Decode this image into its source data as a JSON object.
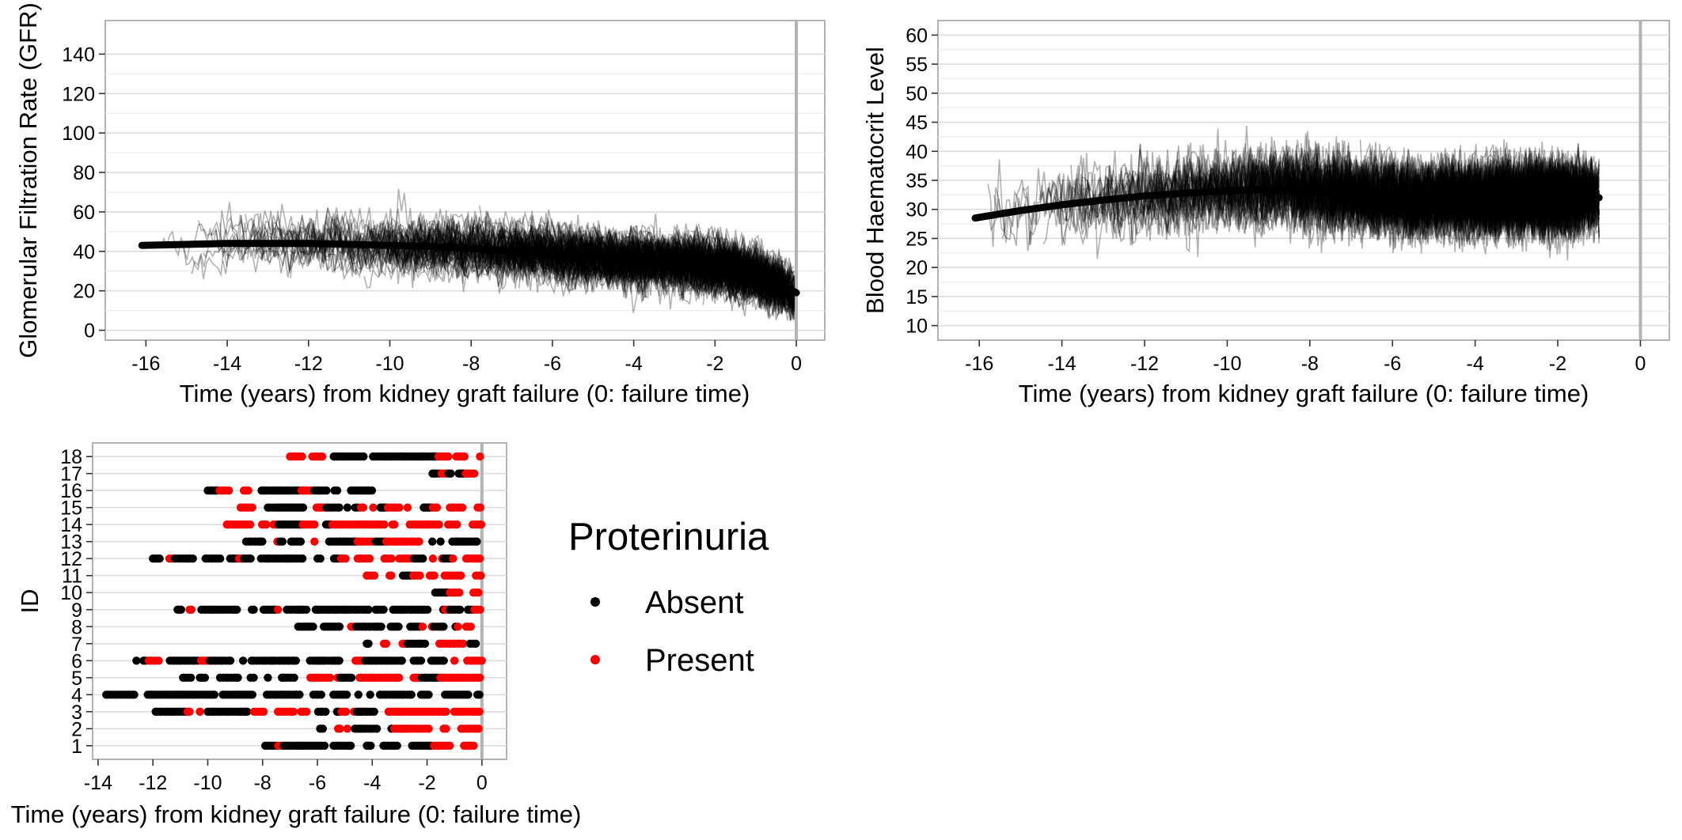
{
  "chart_data": [
    {
      "type": "line",
      "xlabel": "Time (years) from kidney graft failure (0: failure time)",
      "ylabel": "Glomerular Filtration Rate (GFR)",
      "xlim": [
        -17,
        0.7
      ],
      "ylim": [
        -5,
        157
      ],
      "xticks": [
        -16,
        -14,
        -12,
        -10,
        -8,
        -6,
        -4,
        -2,
        0
      ],
      "yticks": [
        0,
        20,
        40,
        60,
        80,
        100,
        120,
        140
      ],
      "vline_x": 0,
      "grid": true,
      "background_trajectories": {
        "description_count": 160,
        "color": "#000000",
        "opacity": 0.3,
        "x_range": [
          -16.1,
          0
        ],
        "y_range": [
          5,
          150
        ]
      },
      "series": [
        {
          "name": "",
          "style": "smooth-mean",
          "x": [
            -16.1,
            -15,
            -14,
            -13,
            -12,
            -11,
            -10,
            -9,
            -8,
            -7,
            -6,
            -5,
            -4,
            -3,
            -2.5,
            -2,
            -1.5,
            -1,
            -0.5,
            0
          ],
          "y": [
            43,
            43.5,
            44,
            44,
            44,
            43.5,
            43,
            42.5,
            41.5,
            40,
            38.5,
            37,
            35.5,
            34.5,
            34,
            32,
            30,
            27.5,
            24,
            19
          ]
        }
      ]
    },
    {
      "type": "line",
      "xlabel": "Time (years) from kidney graft failure (0: failure time)",
      "ylabel": "Blood Haematocrit Level",
      "xlim": [
        -17,
        0.7
      ],
      "ylim": [
        7.5,
        62.5
      ],
      "xticks": [
        -16,
        -14,
        -12,
        -10,
        -8,
        -6,
        -4,
        -2,
        0
      ],
      "yticks": [
        10,
        15,
        20,
        25,
        30,
        35,
        40,
        45,
        50,
        55,
        60
      ],
      "vline_x": 0,
      "grid": true,
      "background_trajectories": {
        "description_count": 160,
        "color": "#000000",
        "opacity": 0.3,
        "x_range": [
          -16.1,
          -1
        ],
        "y_range": [
          10,
          60
        ]
      },
      "series": [
        {
          "name": "",
          "style": "smooth-mean",
          "x": [
            -16.1,
            -15,
            -14,
            -13,
            -12,
            -11,
            -10,
            -9,
            -8.5,
            -8,
            -7,
            -6,
            -5,
            -4,
            -3,
            -2,
            -1
          ],
          "y": [
            28.5,
            29.8,
            30.8,
            31.6,
            32.3,
            32.8,
            33.2,
            33.5,
            33.5,
            33.2,
            32.5,
            32,
            31.8,
            32,
            32,
            32,
            32
          ]
        }
      ]
    },
    {
      "type": "scatter",
      "xlabel": "Time (years) from kidney graft failure (0: failure time)",
      "ylabel": "ID",
      "xlim": [
        -14.2,
        0.9
      ],
      "ylim": [
        0.2,
        18.8
      ],
      "xticks": [
        -14,
        -12,
        -10,
        -8,
        -6,
        -4,
        -2,
        0
      ],
      "yticks": [
        1,
        2,
        3,
        4,
        5,
        6,
        7,
        8,
        9,
        10,
        11,
        12,
        13,
        14,
        15,
        16,
        17,
        18
      ],
      "vline_x": 0,
      "grid": true,
      "legend": {
        "title": "Proterinuria",
        "placement": "right",
        "entries": [
          {
            "label": "Absent",
            "color": "#000000"
          },
          {
            "label": "Present",
            "color": "#ff0000"
          }
        ]
      },
      "subjects": [
        {
          "id": 1,
          "start": -7.9,
          "end": 0,
          "present": [
            [
              -7.5,
              -7.3
            ],
            [
              -1.8,
              0
            ]
          ]
        },
        {
          "id": 2,
          "start": -5.9,
          "end": 0,
          "present": [
            [
              -5.5,
              -4.8
            ],
            [
              -3.2,
              0
            ]
          ]
        },
        {
          "id": 3,
          "start": -11.9,
          "end": 0,
          "present": [
            [
              -10.8,
              -10.2
            ],
            [
              -8.4,
              -6.3
            ],
            [
              -5.2,
              -4.6
            ],
            [
              -3.9,
              0
            ]
          ]
        },
        {
          "id": 4,
          "start": -13.7,
          "end": 0,
          "present": []
        },
        {
          "id": 5,
          "start": -10.9,
          "end": 0,
          "present": [
            [
              -6.3,
              -5.2
            ],
            [
              -4.6,
              -2.2
            ],
            [
              -1.6,
              0
            ]
          ]
        },
        {
          "id": 6,
          "start": -12.6,
          "end": 0,
          "present": [
            [
              -12.2,
              -11.5
            ],
            [
              -10.3,
              -10
            ],
            [
              -4.8,
              -4.3
            ],
            [
              -1.2,
              0
            ]
          ]
        },
        {
          "id": 7,
          "start": -4.2,
          "end": 0,
          "present": [
            [
              -3.9,
              -2.8
            ],
            [
              -1.6,
              -0.6
            ]
          ]
        },
        {
          "id": 8,
          "start": -6.7,
          "end": -0.4,
          "present": [
            [
              -4.8,
              -4.6
            ],
            [
              -2.2,
              -1.8
            ],
            [
              -0.9,
              -0.4
            ]
          ]
        },
        {
          "id": 9,
          "start": -11.1,
          "end": 0,
          "present": [
            [
              -10.7,
              -10.5
            ],
            [
              -7.5,
              -7.3
            ],
            [
              -1.4,
              -1.2
            ],
            [
              -0.3,
              0
            ]
          ]
        },
        {
          "id": 10,
          "start": -1.7,
          "end": 0,
          "present": [
            [
              -1.2,
              0
            ]
          ]
        },
        {
          "id": 11,
          "start": -4.2,
          "end": 0,
          "present": [
            [
              -4.2,
              -3.1
            ],
            [
              -2.6,
              0
            ]
          ]
        },
        {
          "id": 12,
          "start": -12,
          "end": 0,
          "present": [
            [
              -11.4,
              -11.2
            ],
            [
              -8.9,
              -8.7
            ],
            [
              -5.2,
              -2.5
            ],
            [
              -1.8,
              -1.4
            ],
            [
              -1.1,
              0
            ]
          ]
        },
        {
          "id": 13,
          "start": -8.6,
          "end": 0,
          "present": [
            [
              -7.7,
              -7.4
            ],
            [
              -6.4,
              -6
            ],
            [
              -4.6,
              -3.9
            ],
            [
              -3.5,
              -2.2
            ],
            [
              -0.1,
              0
            ]
          ]
        },
        {
          "id": 14,
          "start": -9.3,
          "end": 0,
          "present": [
            [
              -9.3,
              -7.5
            ],
            [
              -6.6,
              -6
            ],
            [
              -5.5,
              0
            ]
          ]
        },
        {
          "id": 15,
          "start": -8.8,
          "end": 0,
          "present": [
            [
              -8.8,
              -8.1
            ],
            [
              -6.3,
              -5.7
            ],
            [
              -4.5,
              -3.9
            ],
            [
              -3.5,
              -2.5
            ],
            [
              -1.8,
              0
            ]
          ]
        },
        {
          "id": 16,
          "start": -10,
          "end": -4,
          "present": [
            [
              -9.6,
              -8.3
            ],
            [
              -6.6,
              -6.2
            ]
          ]
        },
        {
          "id": 17,
          "start": -1.8,
          "end": 0,
          "present": [
            [
              -1.5,
              -1.3
            ],
            [
              -0.6,
              0
            ]
          ]
        },
        {
          "id": 18,
          "start": -7,
          "end": 0,
          "present": [
            [
              -7,
              -5.7
            ],
            [
              -1.6,
              0
            ]
          ]
        }
      ]
    }
  ]
}
